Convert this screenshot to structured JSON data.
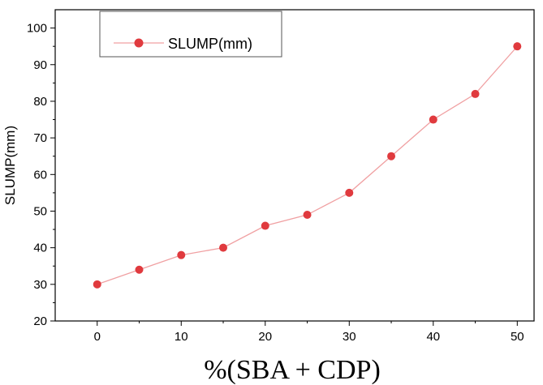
{
  "chart_data": {
    "type": "line",
    "title": "",
    "xlabel": "%(SBA + CDP)",
    "ylabel": "SLUMP(mm)",
    "xlim": [
      -5,
      52
    ],
    "ylim": [
      20,
      105
    ],
    "xticks": [
      0,
      10,
      20,
      30,
      40,
      50
    ],
    "yticks": [
      20,
      30,
      40,
      50,
      60,
      70,
      80,
      90,
      100
    ],
    "grid": false,
    "legend_position": "top-left",
    "series": [
      {
        "name": "SLUMP(mm)",
        "color": "#e03a3e",
        "x": [
          0,
          5,
          10,
          15,
          20,
          25,
          30,
          35,
          40,
          45,
          50
        ],
        "y": [
          30,
          34,
          38,
          40,
          46,
          49,
          55,
          65,
          75,
          82,
          95
        ]
      }
    ]
  }
}
